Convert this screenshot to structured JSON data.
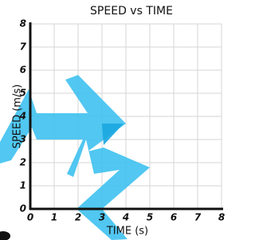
{
  "chart_data": {
    "type": "line",
    "title": "SPEED vs TIME",
    "x_label": "TIME (s)",
    "y_label": "SPEED (m/s)",
    "xlim": [
      0,
      8
    ],
    "ylim": [
      0,
      8
    ],
    "xticks": [
      0,
      1,
      2,
      3,
      4,
      5,
      6,
      7,
      8
    ],
    "yticks": [
      0,
      1,
      2,
      3,
      4,
      5,
      6,
      7,
      8
    ],
    "grid": true
  }
}
